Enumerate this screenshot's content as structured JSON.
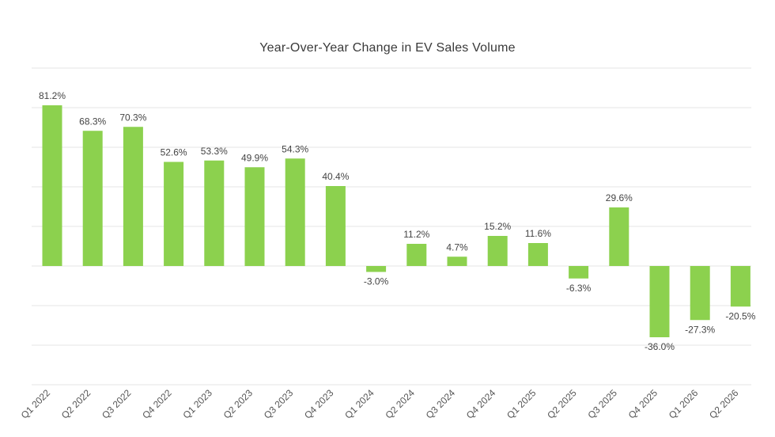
{
  "chart_data": {
    "type": "bar",
    "title": "Year-Over-Year Change in EV Sales Volume",
    "xlabel": "",
    "ylabel": "",
    "categories": [
      "Q1 2022",
      "Q2 2022",
      "Q3 2022",
      "Q4 2022",
      "Q1 2023",
      "Q2 2023",
      "Q3 2023",
      "Q4 2023",
      "Q1 2024",
      "Q2 2024",
      "Q3 2024",
      "Q4 2024",
      "Q1 2025",
      "Q2 2025",
      "Q3 2025",
      "Q4 2025",
      "Q1 2026",
      "Q2 2026"
    ],
    "values": [
      81.2,
      68.3,
      70.3,
      52.6,
      53.3,
      49.9,
      54.3,
      40.4,
      -3.0,
      11.2,
      4.7,
      15.2,
      11.6,
      -6.3,
      29.6,
      -36.0,
      -27.3,
      -20.5
    ],
    "data_labels": [
      "81.2%",
      "68.3%",
      "70.3%",
      "52.6%",
      "53.3%",
      "49.9%",
      "54.3%",
      "40.4%",
      "-3.0%",
      "11.2%",
      "4.7%",
      "15.2%",
      "11.6%",
      "-6.3%",
      "29.6%",
      "-36.0%",
      "-27.3%",
      "-20.5%"
    ],
    "ylim": [
      -60,
      100
    ],
    "gridlines": [
      -60,
      -40,
      -20,
      0,
      20,
      40,
      60,
      80,
      100
    ],
    "y_tick_labels_visible": false,
    "grid": true,
    "legend": "none",
    "bar_color": "#8cd14e"
  }
}
